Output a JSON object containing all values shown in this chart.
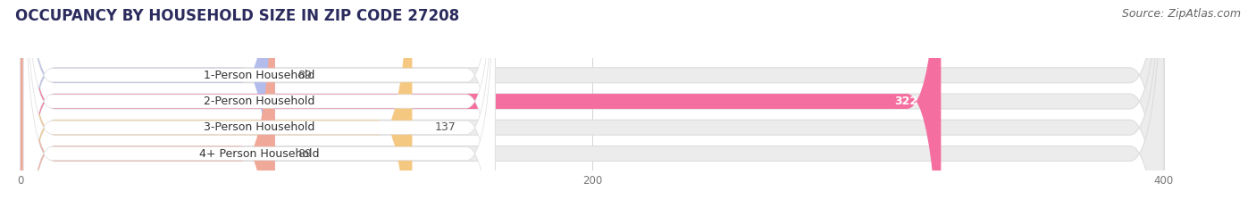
{
  "title": "OCCUPANCY BY HOUSEHOLD SIZE IN ZIP CODE 27208",
  "source": "Source: ZipAtlas.com",
  "categories": [
    "1-Person Household",
    "2-Person Household",
    "3-Person Household",
    "4+ Person Household"
  ],
  "values": [
    89,
    322,
    137,
    89
  ],
  "bar_colors": [
    "#b4bcec",
    "#f46fa0",
    "#f5c882",
    "#f0a898"
  ],
  "track_color": "#ececec",
  "track_border_color": "#dddddd",
  "xlim": [
    -5,
    430
  ],
  "xticks": [
    0,
    200,
    400
  ],
  "bar_height": 0.58,
  "title_color": "#2b2b5e",
  "title_fontsize": 12,
  "label_fontsize": 9,
  "value_fontsize": 9,
  "source_fontsize": 9,
  "source_color": "#666666",
  "label_text_color": "#333333",
  "value_text_color": "#555555",
  "value_text_color_inside": "#ffffff",
  "bg_color": "#ffffff",
  "label_box_color": "#ffffff",
  "max_val": 400
}
